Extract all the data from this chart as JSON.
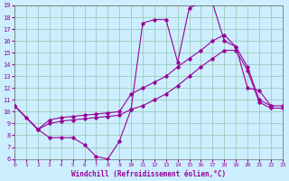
{
  "bg_color": "#cceeff",
  "grid_color": "#99ccbb",
  "line_color": "#990099",
  "xlabel": "Windchill (Refroidissement éolien,°C)",
  "xlim": [
    0,
    23
  ],
  "ylim": [
    6,
    19
  ],
  "xticks": [
    0,
    1,
    2,
    3,
    4,
    5,
    6,
    7,
    8,
    9,
    10,
    11,
    12,
    13,
    14,
    15,
    16,
    17,
    18,
    19,
    20,
    21,
    22,
    23
  ],
  "yticks": [
    6,
    7,
    8,
    9,
    10,
    11,
    12,
    13,
    14,
    15,
    16,
    17,
    18,
    19
  ],
  "line_spike_x": [
    0,
    1,
    2,
    3,
    4,
    5,
    6,
    7,
    8,
    9,
    10,
    11,
    12,
    13,
    14,
    15,
    16,
    17,
    18,
    19,
    20,
    21,
    22
  ],
  "line_spike_y": [
    10.5,
    9.5,
    8.5,
    7.8,
    7.8,
    7.8,
    7.2,
    6.2,
    6.0,
    7.5,
    10.2,
    17.5,
    17.8,
    17.8,
    14.2,
    18.8,
    19.2,
    19.2,
    16.0,
    15.5,
    12.0,
    11.8,
    10.5
  ],
  "line_top_x": [
    0,
    2,
    3,
    4,
    5,
    6,
    7,
    8,
    9,
    10,
    11,
    12,
    13,
    14,
    15,
    16,
    17,
    18,
    19,
    20,
    21,
    22,
    23
  ],
  "line_top_y": [
    10.5,
    8.5,
    9.3,
    9.5,
    9.6,
    9.7,
    9.8,
    9.9,
    10.0,
    11.5,
    12.0,
    12.5,
    13.0,
    13.8,
    14.5,
    15.2,
    16.0,
    16.5,
    15.5,
    13.8,
    11.0,
    10.5,
    10.5
  ],
  "line_bot_x": [
    0,
    2,
    3,
    4,
    5,
    6,
    7,
    8,
    9,
    10,
    11,
    12,
    13,
    14,
    15,
    16,
    17,
    18,
    19,
    20,
    21,
    22,
    23
  ],
  "line_bot_y": [
    10.5,
    8.5,
    9.0,
    9.2,
    9.3,
    9.4,
    9.5,
    9.6,
    9.7,
    10.2,
    10.5,
    11.0,
    11.5,
    12.2,
    13.0,
    13.8,
    14.5,
    15.2,
    15.2,
    13.5,
    10.8,
    10.3,
    10.3
  ]
}
